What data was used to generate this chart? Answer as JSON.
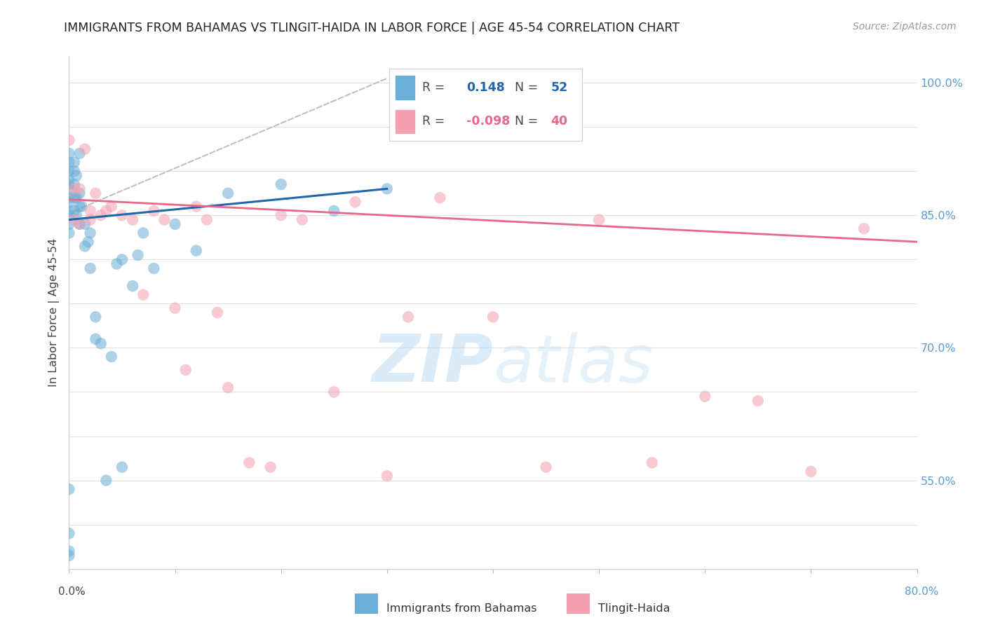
{
  "title": "IMMIGRANTS FROM BAHAMAS VS TLINGIT-HAIDA IN LABOR FORCE | AGE 45-54 CORRELATION CHART",
  "source": "Source: ZipAtlas.com",
  "ylabel": "In Labor Force | Age 45-54",
  "y_ticks": [
    50.0,
    55.0,
    60.0,
    65.0,
    70.0,
    75.0,
    80.0,
    85.0,
    90.0,
    95.0,
    100.0
  ],
  "y_tick_labels": [
    "",
    "55.0%",
    "",
    "",
    "70.0%",
    "",
    "",
    "85.0%",
    "",
    "",
    "100.0%"
  ],
  "xlim": [
    0.0,
    80.0
  ],
  "ylim": [
    45.0,
    103.0
  ],
  "legend_blue_r": "0.148",
  "legend_blue_n": "52",
  "legend_pink_r": "-0.098",
  "legend_pink_n": "40",
  "blue_scatter_x": [
    0.0,
    0.0,
    0.0,
    0.0,
    0.0,
    0.0,
    0.0,
    0.0,
    0.0,
    0.0,
    0.0,
    0.0,
    0.0,
    0.0,
    0.0,
    0.0,
    0.5,
    0.5,
    0.5,
    0.5,
    0.5,
    0.7,
    0.7,
    0.7,
    1.0,
    1.0,
    1.0,
    1.0,
    1.2,
    1.5,
    1.5,
    1.8,
    2.0,
    2.0,
    2.5,
    2.5,
    3.0,
    3.5,
    4.0,
    4.5,
    5.0,
    5.0,
    6.0,
    6.5,
    7.0,
    8.0,
    10.0,
    12.0,
    15.0,
    20.0,
    25.0,
    30.0
  ],
  "blue_scatter_y": [
    85.0,
    86.5,
    87.0,
    88.0,
    88.5,
    89.0,
    90.0,
    91.0,
    92.0,
    83.0,
    84.0,
    85.5,
    54.0,
    49.0,
    46.5,
    47.0,
    85.5,
    87.0,
    88.5,
    90.0,
    91.0,
    85.0,
    87.0,
    89.5,
    84.0,
    86.0,
    87.5,
    92.0,
    86.0,
    81.5,
    84.0,
    82.0,
    79.0,
    83.0,
    71.0,
    73.5,
    70.5,
    55.0,
    69.0,
    79.5,
    80.0,
    56.5,
    77.0,
    80.5,
    83.0,
    79.0,
    84.0,
    81.0,
    87.5,
    88.5,
    85.5,
    88.0
  ],
  "pink_scatter_x": [
    0.0,
    0.5,
    0.5,
    1.0,
    1.0,
    1.5,
    2.0,
    2.0,
    2.5,
    3.0,
    3.5,
    4.0,
    5.0,
    6.0,
    7.0,
    8.0,
    9.0,
    10.0,
    11.0,
    12.0,
    13.0,
    14.0,
    15.0,
    17.0,
    19.0,
    20.0,
    22.0,
    25.0,
    27.0,
    30.0,
    32.0,
    35.0,
    40.0,
    45.0,
    50.0,
    55.0,
    60.0,
    65.0,
    70.0,
    75.0
  ],
  "pink_scatter_y": [
    93.5,
    88.0,
    84.5,
    88.0,
    84.0,
    92.5,
    84.5,
    85.5,
    87.5,
    85.0,
    85.5,
    86.0,
    85.0,
    84.5,
    76.0,
    85.5,
    84.5,
    74.5,
    67.5,
    86.0,
    84.5,
    74.0,
    65.5,
    57.0,
    56.5,
    85.0,
    84.5,
    65.0,
    86.5,
    55.5,
    73.5,
    87.0,
    73.5,
    56.5,
    84.5,
    57.0,
    64.5,
    64.0,
    56.0,
    83.5
  ],
  "blue_line_x0": 0.0,
  "blue_line_x1": 30.0,
  "blue_line_y0": 84.5,
  "blue_line_y1": 88.0,
  "pink_line_x0": 0.0,
  "pink_line_x1": 80.0,
  "pink_line_y0": 86.8,
  "pink_line_y1": 82.0,
  "dashed_line_x0": 0.5,
  "dashed_line_x1": 30.0,
  "dashed_line_y0": 85.5,
  "dashed_line_y1": 100.5,
  "watermark_zip": "ZIP",
  "watermark_atlas": "atlas",
  "bg_color": "#ffffff",
  "blue_color": "#6baed6",
  "pink_color": "#f4a0b0",
  "blue_line_color": "#2166ac",
  "pink_line_color": "#e8688a",
  "dashed_line_color": "#c0c0c0",
  "grid_color": "#e0e0e0",
  "right_label_color": "#5b9bd5",
  "title_color": "#222222",
  "source_color": "#999999"
}
